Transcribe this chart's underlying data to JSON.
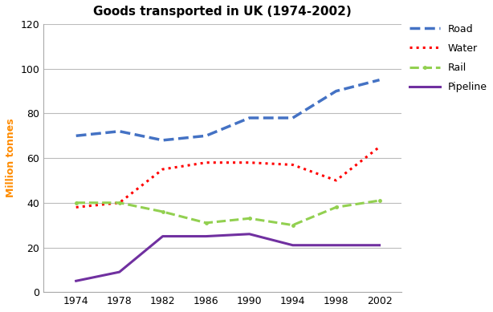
{
  "title": "Goods transported in UK (1974-2002)",
  "ylabel": "Million tonnes",
  "years": [
    1974,
    1978,
    1982,
    1986,
    1990,
    1994,
    1998,
    2002
  ],
  "road": [
    70,
    72,
    68,
    70,
    78,
    78,
    90,
    95
  ],
  "water": [
    38,
    40,
    55,
    58,
    58,
    57,
    50,
    65
  ],
  "rail": [
    40,
    40,
    36,
    31,
    33,
    30,
    38,
    41
  ],
  "pipeline": [
    5,
    9,
    25,
    25,
    26,
    21,
    21,
    21
  ],
  "road_color": "#4472c4",
  "water_color": "#ff0000",
  "rail_color": "#92d050",
  "pipeline_color": "#7030a0",
  "ylim": [
    0,
    120
  ],
  "yticks": [
    0,
    20,
    40,
    60,
    80,
    100,
    120
  ],
  "background": "#ffffff",
  "grid_color": "#bbbbbb",
  "title_fontsize": 11,
  "ylabel_fontsize": 9,
  "tick_fontsize": 9,
  "legend_fontsize": 9
}
